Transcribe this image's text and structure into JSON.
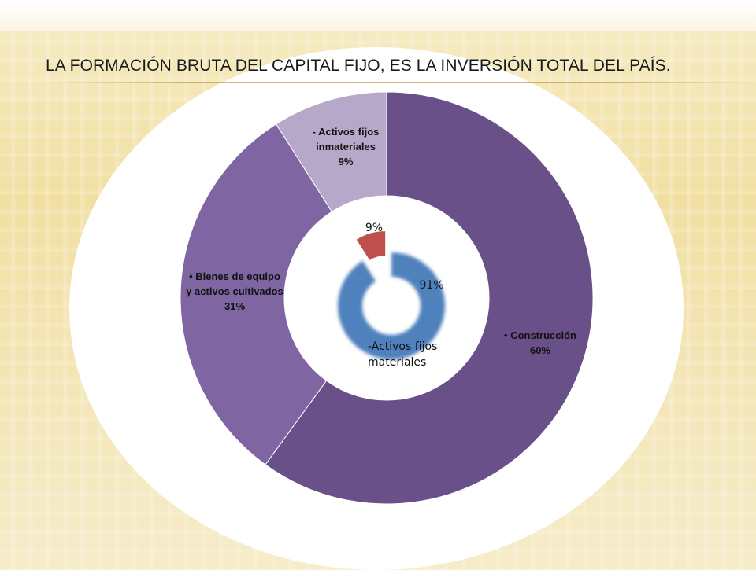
{
  "slide": {
    "title": "LA FORMACIÓN BRUTA DEL CAPITAL FIJO, ES LA INVERSIÓN TOTAL DEL PAÍS."
  },
  "chart_data": [
    {
      "type": "pie",
      "subtype": "doughnut",
      "series": [
        {
          "categories": [
            "• Construcción",
            "• Bienes de equipo y activos cultivados",
            "- Activos fijos inmateriales"
          ],
          "values": [
            60,
            31,
            9
          ],
          "labels": [
            {
              "lines": [
                "• Construcción",
                "60%"
              ]
            },
            {
              "lines": [
                "• Bienes de equipo",
                "y activos cultivados",
                "31%"
              ]
            },
            {
              "lines": [
                "- Activos fijos",
                "inmateriales",
                "9%"
              ]
            }
          ],
          "colors": [
            "#6a5088",
            "#7f65a2",
            "#b6a8c8"
          ]
        }
      ]
    },
    {
      "type": "pie",
      "subtype": "doughnut",
      "series": [
        {
          "categories": [
            "-Activos fijos materiales",
            ""
          ],
          "values": [
            91,
            9
          ],
          "labels": [
            {
              "lines": [
                "91%"
              ]
            },
            {
              "lines": [
                "9%"
              ]
            }
          ],
          "colors": [
            "#4f81bd",
            "#c0504d"
          ],
          "exploded": [
            false,
            true
          ]
        }
      ],
      "category_label": [
        "-Activos fijos",
        "materiales"
      ]
    }
  ]
}
